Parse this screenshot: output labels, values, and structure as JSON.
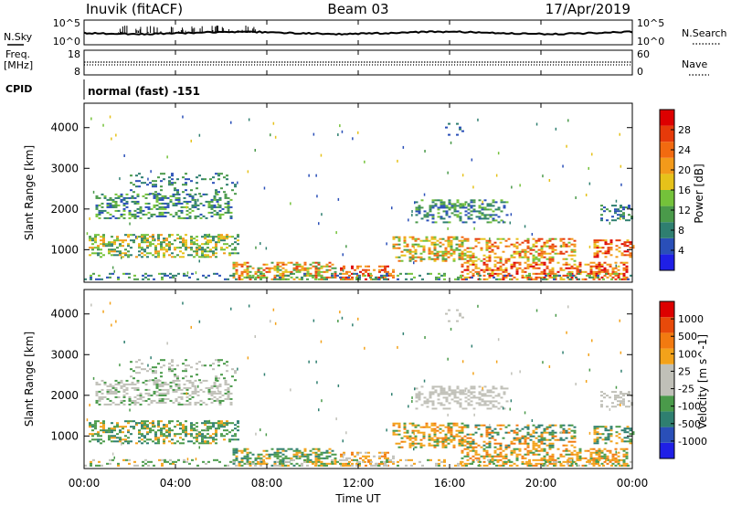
{
  "header": {
    "station": "Inuvik (fitACF)",
    "beam": "Beam 03",
    "date": "17/Apr/2019"
  },
  "noise_panel": {
    "left_label": "N.Sky",
    "left_ticks": [
      "10^5",
      "10^0"
    ],
    "right_ticks": [
      "10^5",
      "10^0"
    ],
    "right_label": "N.Search"
  },
  "freq_panel": {
    "left_label_1": "Freq.",
    "left_label_2": "[MHz]",
    "left_ticks": [
      "18",
      "8"
    ],
    "right_ticks": [
      "60",
      "0"
    ],
    "right_label": "Nave"
  },
  "cpid_panel": {
    "label": "CPID",
    "text": "normal (fast) -151"
  },
  "colors": {
    "power_scale": [
      "#1f1fe6",
      "#2a4fb8",
      "#2f7f70",
      "#4a9a4a",
      "#74c23a",
      "#e6c21a",
      "#f39a1a",
      "#f26a10",
      "#e63a0a",
      "#dd0000"
    ],
    "velocity_scale": [
      "#1f1fe6",
      "#2a4fb8",
      "#2f7f70",
      "#4a9a4a",
      "#c0c0b8",
      "#c0c0b8",
      "#f3a21a",
      "#f27a10",
      "#e84a0a",
      "#dd0000"
    ]
  },
  "chart_data": [
    {
      "type": "heatmap",
      "ylabel": "Slant Range [km]",
      "y_ticks": [
        1000,
        2000,
        3000,
        4000
      ],
      "ylim": [
        200,
        4600
      ],
      "colorbar_label": "Power [dB]",
      "colorbar_ticks": [
        4,
        8,
        12,
        16,
        20,
        24,
        28
      ],
      "clim": [
        0,
        30
      ]
    },
    {
      "type": "heatmap",
      "ylabel": "Slant Range [km]",
      "y_ticks": [
        1000,
        2000,
        3000,
        4000
      ],
      "ylim": [
        200,
        4600
      ],
      "colorbar_label": "Velocity [m s^-1]",
      "colorbar_ticks": [
        "1000",
        "500",
        "100",
        "25",
        "-25",
        "-100",
        "-500",
        "-1000"
      ]
    }
  ],
  "xaxis": {
    "label": "Time UT",
    "ticks": [
      "00:00",
      "04:00",
      "08:00",
      "12:00",
      "16:00",
      "20:00",
      "00:00"
    ]
  }
}
